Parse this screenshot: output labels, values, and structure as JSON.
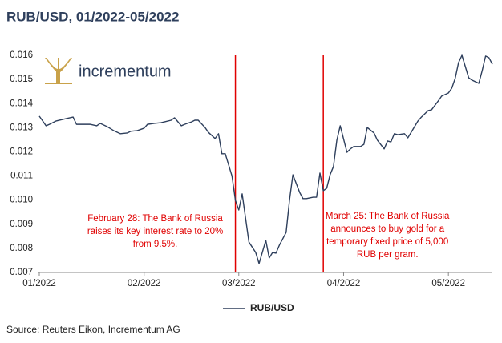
{
  "chart_data": {
    "type": "line",
    "title": "RUB/USD, 01/2022-05/2022",
    "logo": "incrementum",
    "source": "Source: Reuters Eikon, Incrementum AG",
    "x": [
      0,
      2,
      3,
      5,
      8,
      10,
      11,
      13,
      15,
      17,
      18,
      20,
      22,
      24,
      26,
      27,
      29,
      31,
      32,
      34,
      36,
      37,
      39,
      40,
      42,
      43,
      45,
      46,
      47,
      49,
      50,
      52,
      53,
      54,
      55,
      57,
      58,
      59,
      60,
      62,
      64,
      65,
      67,
      68,
      69,
      70,
      71,
      73,
      74,
      75,
      77,
      78,
      79,
      81,
      82,
      83,
      84,
      85,
      86,
      87,
      88,
      89,
      91,
      92,
      93,
      95,
      96,
      97,
      99,
      100,
      102,
      103,
      104,
      105,
      106,
      108,
      109,
      110,
      112,
      113,
      115,
      116,
      118,
      119,
      121,
      122,
      123,
      124,
      125,
      127,
      128,
      130,
      131,
      132,
      133,
      134
    ],
    "series": [
      {
        "name": "RUB/USD",
        "color": "#2e3f5c",
        "values": [
          0.01348,
          0.01308,
          0.01314,
          0.01328,
          0.01338,
          0.01344,
          0.01314,
          0.01314,
          0.01314,
          0.01308,
          0.01318,
          0.01305,
          0.01288,
          0.01275,
          0.01278,
          0.01285,
          0.01288,
          0.01298,
          0.01314,
          0.01318,
          0.01321,
          0.01324,
          0.01331,
          0.01341,
          0.01308,
          0.01314,
          0.01324,
          0.01331,
          0.01331,
          0.01301,
          0.01281,
          0.01255,
          0.01275,
          0.01192,
          0.01192,
          0.01099,
          0.00999,
          0.00959,
          0.01026,
          0.00826,
          0.00783,
          0.00737,
          0.00833,
          0.0076,
          0.00783,
          0.0078,
          0.00813,
          0.00866,
          0.00999,
          0.01105,
          0.01032,
          0.01006,
          0.01006,
          0.01012,
          0.01012,
          0.01112,
          0.01039,
          0.01049,
          0.01105,
          0.01139,
          0.01248,
          0.01308,
          0.01198,
          0.01212,
          0.01222,
          0.01222,
          0.01231,
          0.01301,
          0.01278,
          0.01248,
          0.01212,
          0.01245,
          0.01241,
          0.01275,
          0.01271,
          0.01275,
          0.01258,
          0.01281,
          0.01328,
          0.01344,
          0.01371,
          0.01374,
          0.01411,
          0.01431,
          0.01444,
          0.01464,
          0.01504,
          0.0157,
          0.016,
          0.01507,
          0.01497,
          0.01484,
          0.01537,
          0.01597,
          0.0159,
          0.01563
        ]
      }
    ],
    "xlim": [
      0,
      134
    ],
    "xticks": [
      {
        "value": 0,
        "label": "01/2022"
      },
      {
        "value": 31,
        "label": "02/2022"
      },
      {
        "value": 59,
        "label": "03/2022"
      },
      {
        "value": 90,
        "label": "04/2022"
      },
      {
        "value": 121,
        "label": "05/2022"
      }
    ],
    "ylim": [
      0.007,
      0.016
    ],
    "yticks": [
      0.007,
      0.008,
      0.009,
      {
        "value": 0.01,
        "label": "0.010"
      },
      0.011,
      0.012,
      0.013,
      0.014,
      0.015,
      0.016
    ],
    "grid": false,
    "annotations": [
      {
        "x": 58,
        "color": "#e00000",
        "text": [
          "February 28: The Bank of Russia",
          "raises its key interest rate to 20%",
          "from 9.5%."
        ]
      },
      {
        "x": 84,
        "color": "#e00000",
        "text": [
          "March 25: The Bank of Russia",
          "announces to buy gold for a",
          "temporary fixed price of 5,000",
          "RUB per gram."
        ]
      }
    ]
  }
}
